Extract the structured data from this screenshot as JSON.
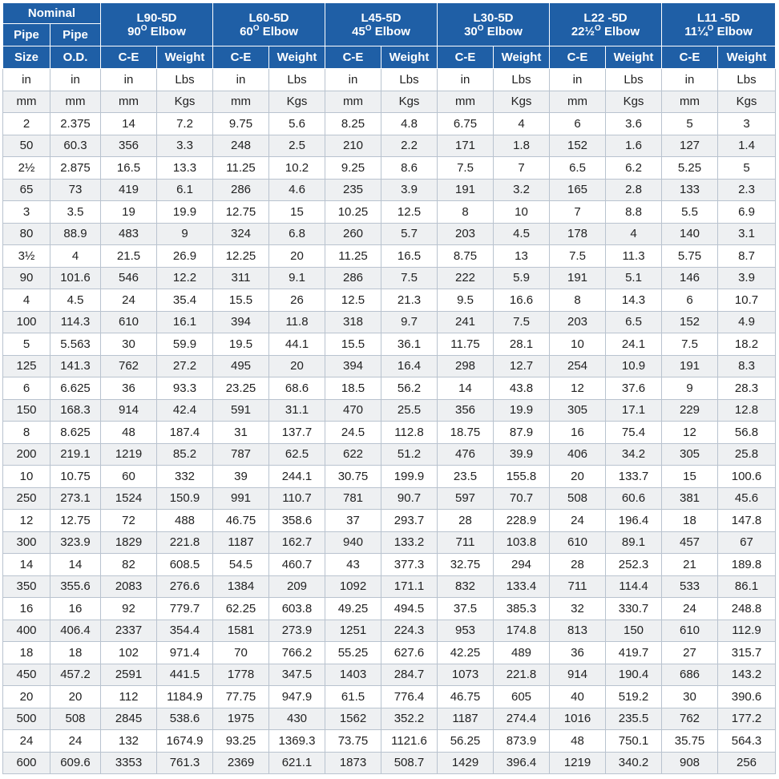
{
  "header": {
    "nominal": "Nominal",
    "pipe_size_label": [
      "Pipe",
      "Size"
    ],
    "pipe_od_label": [
      "Pipe",
      "O.D."
    ],
    "groups": [
      {
        "code": "L90-5D",
        "angle": "90",
        "angle_sup": "O",
        "desc": " Elbow"
      },
      {
        "code": "L60-5D",
        "angle": "60",
        "angle_sup": "O",
        "desc": " Elbow"
      },
      {
        "code": "L45-5D",
        "angle": "45",
        "angle_sup": "O",
        "desc": " Elbow"
      },
      {
        "code": "L30-5D",
        "angle": "30",
        "angle_sup": "O",
        "desc": " Elbow"
      },
      {
        "code": "L22 -5D",
        "angle": "22½",
        "angle_sup": "O",
        "desc": " Elbow"
      },
      {
        "code": "L11 -5D",
        "angle": "11¼",
        "angle_sup": "O",
        "desc": " Elbow"
      }
    ],
    "ce_label": "C-E",
    "weight_label": "Weight"
  },
  "rows": [
    [
      "in",
      "in",
      "in",
      "Lbs",
      "in",
      "Lbs",
      "in",
      "Lbs",
      "in",
      "Lbs",
      "in",
      "Lbs",
      "in",
      "Lbs"
    ],
    [
      "mm",
      "mm",
      "mm",
      "Kgs",
      "mm",
      "Kgs",
      "mm",
      "Kgs",
      "mm",
      "Kgs",
      "mm",
      "Kgs",
      "mm",
      "Kgs"
    ],
    [
      "2",
      "2.375",
      "14",
      "7.2",
      "9.75",
      "5.6",
      "8.25",
      "4.8",
      "6.75",
      "4",
      "6",
      "3.6",
      "5",
      "3"
    ],
    [
      "50",
      "60.3",
      "356",
      "3.3",
      "248",
      "2.5",
      "210",
      "2.2",
      "171",
      "1.8",
      "152",
      "1.6",
      "127",
      "1.4"
    ],
    [
      "2½",
      "2.875",
      "16.5",
      "13.3",
      "11.25",
      "10.2",
      "9.25",
      "8.6",
      "7.5",
      "7",
      "6.5",
      "6.2",
      "5.25",
      "5"
    ],
    [
      "65",
      "73",
      "419",
      "6.1",
      "286",
      "4.6",
      "235",
      "3.9",
      "191",
      "3.2",
      "165",
      "2.8",
      "133",
      "2.3"
    ],
    [
      "3",
      "3.5",
      "19",
      "19.9",
      "12.75",
      "15",
      "10.25",
      "12.5",
      "8",
      "10",
      "7",
      "8.8",
      "5.5",
      "6.9"
    ],
    [
      "80",
      "88.9",
      "483",
      "9",
      "324",
      "6.8",
      "260",
      "5.7",
      "203",
      "4.5",
      "178",
      "4",
      "140",
      "3.1"
    ],
    [
      "3½",
      "4",
      "21.5",
      "26.9",
      "12.25",
      "20",
      "11.25",
      "16.5",
      "8.75",
      "13",
      "7.5",
      "11.3",
      "5.75",
      "8.7"
    ],
    [
      "90",
      "101.6",
      "546",
      "12.2",
      "311",
      "9.1",
      "286",
      "7.5",
      "222",
      "5.9",
      "191",
      "5.1",
      "146",
      "3.9"
    ],
    [
      "4",
      "4.5",
      "24",
      "35.4",
      "15.5",
      "26",
      "12.5",
      "21.3",
      "9.5",
      "16.6",
      "8",
      "14.3",
      "6",
      "10.7"
    ],
    [
      "100",
      "114.3",
      "610",
      "16.1",
      "394",
      "11.8",
      "318",
      "9.7",
      "241",
      "7.5",
      "203",
      "6.5",
      "152",
      "4.9"
    ],
    [
      "5",
      "5.563",
      "30",
      "59.9",
      "19.5",
      "44.1",
      "15.5",
      "36.1",
      "11.75",
      "28.1",
      "10",
      "24.1",
      "7.5",
      "18.2"
    ],
    [
      "125",
      "141.3",
      "762",
      "27.2",
      "495",
      "20",
      "394",
      "16.4",
      "298",
      "12.7",
      "254",
      "10.9",
      "191",
      "8.3"
    ],
    [
      "6",
      "6.625",
      "36",
      "93.3",
      "23.25",
      "68.6",
      "18.5",
      "56.2",
      "14",
      "43.8",
      "12",
      "37.6",
      "9",
      "28.3"
    ],
    [
      "150",
      "168.3",
      "914",
      "42.4",
      "591",
      "31.1",
      "470",
      "25.5",
      "356",
      "19.9",
      "305",
      "17.1",
      "229",
      "12.8"
    ],
    [
      "8",
      "8.625",
      "48",
      "187.4",
      "31",
      "137.7",
      "24.5",
      "112.8",
      "18.75",
      "87.9",
      "16",
      "75.4",
      "12",
      "56.8"
    ],
    [
      "200",
      "219.1",
      "1219",
      "85.2",
      "787",
      "62.5",
      "622",
      "51.2",
      "476",
      "39.9",
      "406",
      "34.2",
      "305",
      "25.8"
    ],
    [
      "10",
      "10.75",
      "60",
      "332",
      "39",
      "244.1",
      "30.75",
      "199.9",
      "23.5",
      "155.8",
      "20",
      "133.7",
      "15",
      "100.6"
    ],
    [
      "250",
      "273.1",
      "1524",
      "150.9",
      "991",
      "110.7",
      "781",
      "90.7",
      "597",
      "70.7",
      "508",
      "60.6",
      "381",
      "45.6"
    ],
    [
      "12",
      "12.75",
      "72",
      "488",
      "46.75",
      "358.6",
      "37",
      "293.7",
      "28",
      "228.9",
      "24",
      "196.4",
      "18",
      "147.8"
    ],
    [
      "300",
      "323.9",
      "1829",
      "221.8",
      "1187",
      "162.7",
      "940",
      "133.2",
      "711",
      "103.8",
      "610",
      "89.1",
      "457",
      "67"
    ],
    [
      "14",
      "14",
      "82",
      "608.5",
      "54.5",
      "460.7",
      "43",
      "377.3",
      "32.75",
      "294",
      "28",
      "252.3",
      "21",
      "189.8"
    ],
    [
      "350",
      "355.6",
      "2083",
      "276.6",
      "1384",
      "209",
      "1092",
      "171.1",
      "832",
      "133.4",
      "711",
      "114.4",
      "533",
      "86.1"
    ],
    [
      "16",
      "16",
      "92",
      "779.7",
      "62.25",
      "603.8",
      "49.25",
      "494.5",
      "37.5",
      "385.3",
      "32",
      "330.7",
      "24",
      "248.8"
    ],
    [
      "400",
      "406.4",
      "2337",
      "354.4",
      "1581",
      "273.9",
      "1251",
      "224.3",
      "953",
      "174.8",
      "813",
      "150",
      "610",
      "112.9"
    ],
    [
      "18",
      "18",
      "102",
      "971.4",
      "70",
      "766.2",
      "55.25",
      "627.6",
      "42.25",
      "489",
      "36",
      "419.7",
      "27",
      "315.7"
    ],
    [
      "450",
      "457.2",
      "2591",
      "441.5",
      "1778",
      "347.5",
      "1403",
      "284.7",
      "1073",
      "221.8",
      "914",
      "190.4",
      "686",
      "143.2"
    ],
    [
      "20",
      "20",
      "112",
      "1184.9",
      "77.75",
      "947.9",
      "61.5",
      "776.4",
      "46.75",
      "605",
      "40",
      "519.2",
      "30",
      "390.6"
    ],
    [
      "500",
      "508",
      "2845",
      "538.6",
      "1975",
      "430",
      "1562",
      "352.2",
      "1187",
      "274.4",
      "1016",
      "235.5",
      "762",
      "177.2"
    ],
    [
      "24",
      "24",
      "132",
      "1674.9",
      "93.25",
      "1369.3",
      "73.75",
      "1121.6",
      "56.25",
      "873.9",
      "48",
      "750.1",
      "35.75",
      "564.3"
    ],
    [
      "600",
      "609.6",
      "3353",
      "761.3",
      "2369",
      "621.1",
      "1873",
      "508.7",
      "1429",
      "396.4",
      "1219",
      "340.2",
      "908",
      "256"
    ]
  ]
}
